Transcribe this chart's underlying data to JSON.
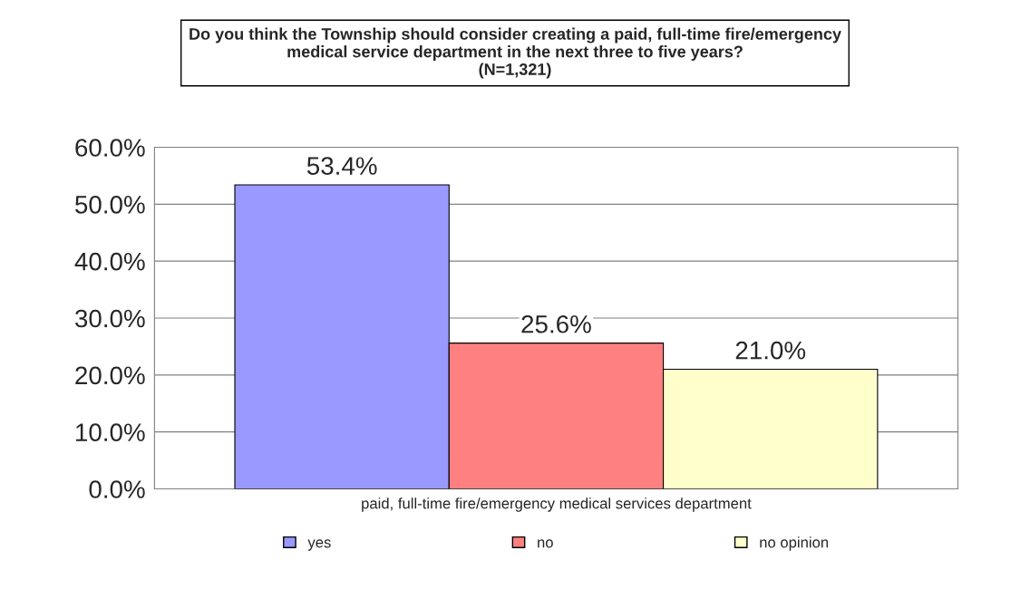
{
  "chart_data": {
    "type": "bar",
    "title": "Do you think the Township should consider creating a paid, full-time fire/emergency\nmedical service department in the next three to five years?\n(N=1,321)",
    "categories": [
      "paid, full-time fire/emergency medical services department"
    ],
    "series": [
      {
        "name": "yes",
        "color": "#9999ff",
        "values": [
          53.4
        ],
        "value_labels": [
          "53.4%"
        ]
      },
      {
        "name": "no",
        "color": "#ff8080",
        "values": [
          25.6
        ],
        "value_labels": [
          "25.6%"
        ]
      },
      {
        "name": "no opinion",
        "color": "#ffffcc",
        "values": [
          21.0
        ],
        "value_labels": [
          "21.0%"
        ]
      }
    ],
    "ylim": [
      0,
      60
    ],
    "yticks": [
      {
        "value": 0,
        "label": "0.0%"
      },
      {
        "value": 10,
        "label": "10.0%"
      },
      {
        "value": 20,
        "label": "20.0%"
      },
      {
        "value": 30,
        "label": "30.0%"
      },
      {
        "value": 40,
        "label": "40.0%"
      },
      {
        "value": 50,
        "label": "50.0%"
      },
      {
        "value": 60,
        "label": "60.0%"
      }
    ],
    "grid": "y",
    "legend": "bottom"
  }
}
